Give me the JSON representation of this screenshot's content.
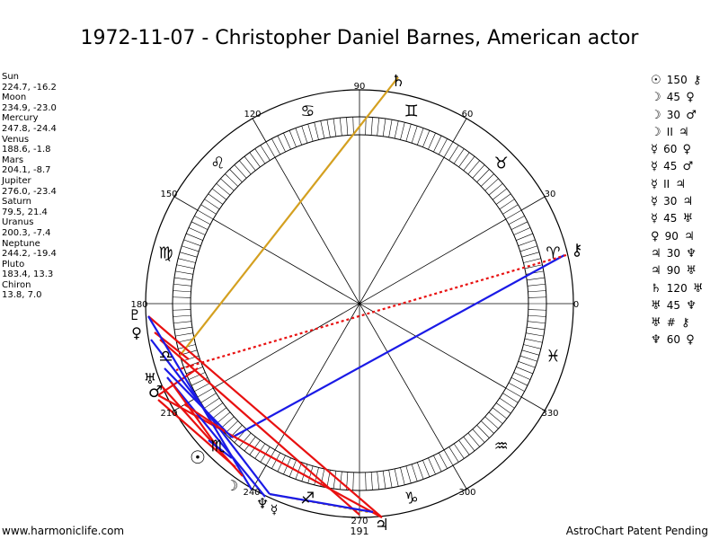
{
  "title": "1972-11-07 - Christopher Daniel Barnes, American actor",
  "planets": [
    {
      "name": "Sun",
      "coords": "224.7, -16.2"
    },
    {
      "name": "Moon",
      "coords": "234.9, -23.0"
    },
    {
      "name": "Mercury",
      "coords": "247.8, -24.4"
    },
    {
      "name": "Venus",
      "coords": "188.6, -1.8"
    },
    {
      "name": "Mars",
      "coords": "204.1, -8.7"
    },
    {
      "name": "Jupiter",
      "coords": "276.0, -23.4"
    },
    {
      "name": "Saturn",
      "coords": "79.5, 21.4"
    },
    {
      "name": "Uranus",
      "coords": "200.3, -7.4"
    },
    {
      "name": "Neptune",
      "coords": "244.2, -19.4"
    },
    {
      "name": "Pluto",
      "coords": "183.4, 13.3"
    },
    {
      "name": "Chiron",
      "coords": "13.8, 7.0"
    }
  ],
  "aspects": [
    {
      "p1": "☉",
      "aspect": "150",
      "p2": "⚷"
    },
    {
      "p1": "☽",
      "aspect": "45",
      "p2": "♀"
    },
    {
      "p1": "☽",
      "aspect": "30",
      "p2": "♂"
    },
    {
      "p1": "☽",
      "aspect": "II",
      "p2": "♃"
    },
    {
      "p1": "☿",
      "aspect": "60",
      "p2": "♀"
    },
    {
      "p1": "☿",
      "aspect": "45",
      "p2": "♂"
    },
    {
      "p1": "☿",
      "aspect": "II",
      "p2": "♃"
    },
    {
      "p1": "☿",
      "aspect": "30",
      "p2": "♃"
    },
    {
      "p1": "☿",
      "aspect": "45",
      "p2": "♅"
    },
    {
      "p1": "♀",
      "aspect": "90",
      "p2": "♃"
    },
    {
      "p1": "♃",
      "aspect": "30",
      "p2": "♆"
    },
    {
      "p1": "♃",
      "aspect": "90",
      "p2": "♅"
    },
    {
      "p1": "♄",
      "aspect": "120",
      "p2": "♅"
    },
    {
      "p1": "♅",
      "aspect": "45",
      "p2": "♆"
    },
    {
      "p1": "♅",
      "aspect": "#",
      "p2": "⚷"
    },
    {
      "p1": "♆",
      "aspect": "60",
      "p2": "♀"
    }
  ],
  "wheel": {
    "degree_labels": [
      "0",
      "30",
      "60",
      "90",
      "120",
      "150",
      "180",
      "210",
      "240",
      "270",
      "300",
      "330"
    ],
    "extra_label": "191",
    "signs": [
      "♈",
      "♉",
      "♊",
      "♋",
      "♌",
      "♍",
      "♎",
      "♏",
      "♐",
      "♑",
      "♒",
      "♓"
    ],
    "planet_glyphs": {
      "saturn": "♄",
      "chiron": "⚷",
      "pluto": "♇",
      "venus": "♀",
      "uranus": "♅",
      "mars": "♂",
      "sun": "☉",
      "moon": "☽",
      "neptune": "♆",
      "mercury": "☿",
      "jupiter": "♃"
    }
  },
  "footer": {
    "left": "www.harmoniclife.com",
    "right": "AstroChart Patent Pending"
  }
}
